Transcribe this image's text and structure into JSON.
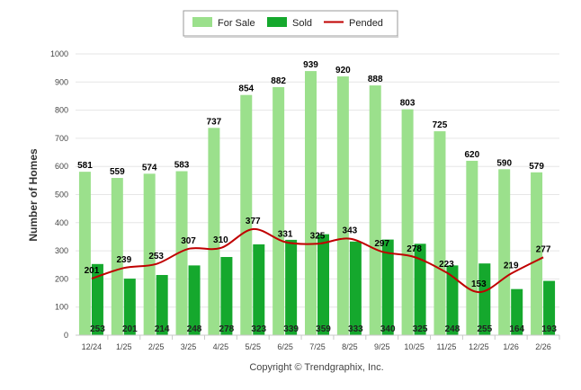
{
  "chart_data": {
    "type": "bar",
    "categories": [
      "12/24",
      "1/25",
      "2/25",
      "3/25",
      "4/25",
      "5/25",
      "6/25",
      "7/25",
      "8/25",
      "9/25",
      "10/25",
      "11/25",
      "12/25",
      "1/26",
      "2/26"
    ],
    "series": [
      {
        "name": "For Sale",
        "type": "bar",
        "color": "#9be08c",
        "values": [
          581,
          559,
          574,
          583,
          737,
          854,
          882,
          939,
          920,
          888,
          803,
          725,
          620,
          590,
          579
        ]
      },
      {
        "name": "Sold",
        "type": "bar",
        "color": "#15a82d",
        "values": [
          253,
          201,
          214,
          248,
          278,
          323,
          339,
          359,
          333,
          340,
          325,
          248,
          255,
          164,
          193
        ]
      },
      {
        "name": "Pended",
        "type": "line",
        "color": "#c00000",
        "values": [
          201,
          239,
          253,
          307,
          310,
          377,
          331,
          325,
          343,
          297,
          278,
          223,
          153,
          219,
          277
        ]
      }
    ],
    "ylabel": "Number of Homes",
    "ylim": [
      0,
      1000
    ],
    "yticks": [
      0,
      100,
      200,
      300,
      400,
      500,
      600,
      700,
      800,
      900,
      1000
    ],
    "grid": true,
    "legend": "top-center",
    "footer": "Copyright © Trendgraphix, Inc."
  }
}
